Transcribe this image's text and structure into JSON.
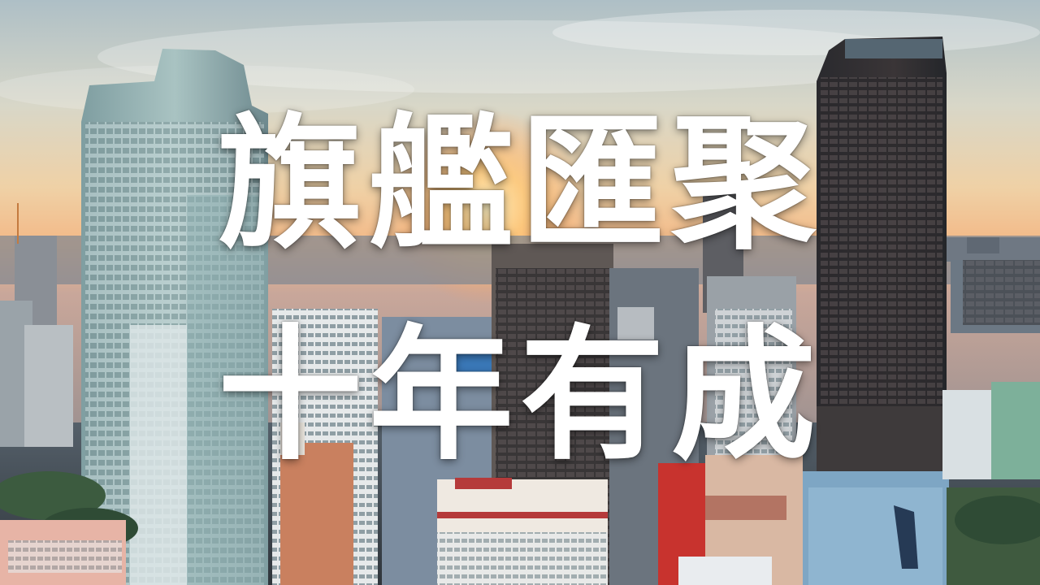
{
  "title": {
    "line1": "旗艦匯聚",
    "line2": "十年有成"
  },
  "colors": {
    "sky_top": "#b9c9cf",
    "sky_glow": "#f1c28f",
    "sun": "#ffd48a",
    "text": "#ffffff"
  }
}
